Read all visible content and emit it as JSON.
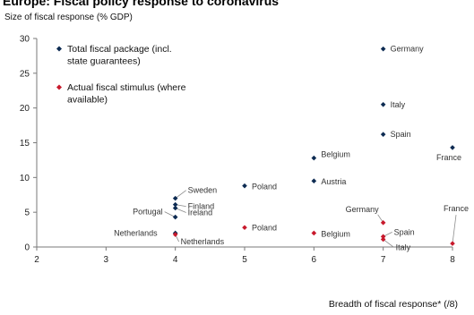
{
  "chart_data": {
    "type": "scatter",
    "title": "Europe: Fiscal policy response to coronavirus",
    "ylabel": "Size of fiscal response (% GDP)",
    "xlabel": "Breadth of fiscal response* (/8)",
    "xlim": [
      2,
      8
    ],
    "ylim": [
      0,
      30
    ],
    "xticks": [
      "2",
      "3",
      "4",
      "5",
      "6",
      "7",
      "8"
    ],
    "yticks": [
      "0",
      "5",
      "10",
      "15",
      "20",
      "25",
      "30"
    ],
    "legend_position": "top-left",
    "colors": {
      "total": "#0d2b52",
      "actual": "#c8192c"
    },
    "series": [
      {
        "name": "Total fiscal package (incl. state guarantees)",
        "legend_lines": [
          "Total fiscal package (incl.",
          "state guarantees)"
        ],
        "color_key": "total",
        "points": [
          {
            "label": "Germany",
            "x": 7,
            "y": 28.5
          },
          {
            "label": "Italy",
            "x": 7,
            "y": 20.5
          },
          {
            "label": "Spain",
            "x": 7,
            "y": 16.2
          },
          {
            "label": "France",
            "x": 8,
            "y": 14.3
          },
          {
            "label": "Belgium",
            "x": 6,
            "y": 12.8
          },
          {
            "label": "Austria",
            "x": 6,
            "y": 9.5
          },
          {
            "label": "Poland",
            "x": 5,
            "y": 8.8
          },
          {
            "label": "Sweden",
            "x": 4,
            "y": 7.0
          },
          {
            "label": "Finland",
            "x": 4,
            "y": 6.1
          },
          {
            "label": "Ireland",
            "x": 4,
            "y": 5.6
          },
          {
            "label": "Portugal",
            "x": 4,
            "y": 4.3
          },
          {
            "label": "Netherlands",
            "x": 4,
            "y": 2.0
          }
        ]
      },
      {
        "name": "Actual fiscal stimulus (where available)",
        "legend_lines": [
          "Actual fiscal stimulus (where",
          "available)"
        ],
        "color_key": "actual",
        "points": [
          {
            "label": "Germany",
            "x": 7,
            "y": 3.5
          },
          {
            "label": "Poland",
            "x": 5,
            "y": 2.8
          },
          {
            "label": "Belgium",
            "x": 6,
            "y": 2.0
          },
          {
            "label": "Netherlands",
            "x": 4,
            "y": 1.8
          },
          {
            "label": "Spain",
            "x": 7,
            "y": 1.5
          },
          {
            "label": "Italy",
            "x": 7,
            "y": 1.1
          },
          {
            "label": "France",
            "x": 8,
            "y": 0.5
          }
        ]
      }
    ]
  }
}
